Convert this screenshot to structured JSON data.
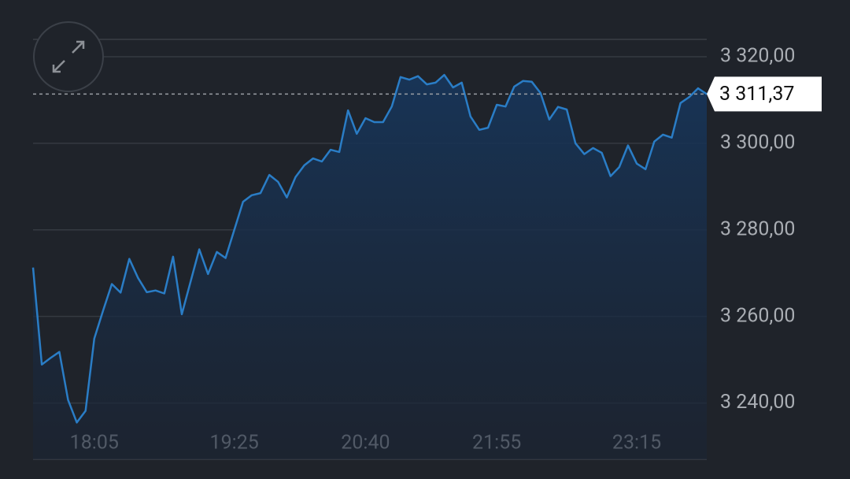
{
  "chart_data": {
    "type": "area",
    "categories": [
      null,
      null,
      null,
      null,
      null,
      null,
      null,
      "18:05",
      null,
      null,
      null,
      null,
      null,
      null,
      null,
      null,
      null,
      null,
      null,
      null,
      null,
      null,
      null,
      "19:25",
      null,
      null,
      null,
      null,
      null,
      null,
      null,
      null,
      null,
      null,
      null,
      null,
      null,
      null,
      "20:40",
      null,
      null,
      null,
      null,
      null,
      null,
      null,
      null,
      null,
      null,
      null,
      null,
      null,
      null,
      "21:55",
      null,
      null,
      null,
      null,
      null,
      null,
      null,
      null,
      null,
      null,
      null,
      null,
      null,
      null,
      null,
      "23:15",
      null,
      null,
      null,
      null,
      null,
      null,
      null,
      null
    ],
    "values": [
      3271.3,
      3248.9,
      3250.4,
      3251.8,
      3240.7,
      3235.5,
      3238.2,
      3254.9,
      3261.3,
      3267.5,
      3265.5,
      3273.3,
      3268.9,
      3265.6,
      3266.0,
      3265.3,
      3273.8,
      3260.5,
      3268.0,
      3275.5,
      3269.8,
      3274.9,
      3273.5,
      3280.0,
      3286.5,
      3288.0,
      3288.5,
      3292.7,
      3291.1,
      3287.5,
      3292.2,
      3294.9,
      3296.5,
      3295.8,
      3298.5,
      3298.0,
      3307.6,
      3302.2,
      3305.8,
      3304.9,
      3304.9,
      3308.5,
      3315.3,
      3314.7,
      3315.5,
      3313.6,
      3314.0,
      3315.8,
      3312.9,
      3314.0,
      3306.2,
      3303.1,
      3303.6,
      3308.9,
      3308.5,
      3313.1,
      3314.4,
      3314.2,
      3311.6,
      3305.5,
      3308.4,
      3307.8,
      3300.0,
      3297.5,
      3298.9,
      3297.8,
      3292.4,
      3294.5,
      3299.5,
      3295.3,
      3294.0,
      3300.4,
      3302.0,
      3301.3,
      3309.3,
      3310.7,
      3312.7,
      3311.37
    ],
    "color": "#2a7dc6",
    "ylim": [
      3227,
      3324
    ],
    "yticks": [
      {
        "value": 3240,
        "label": "3 240,00"
      },
      {
        "value": 3260,
        "label": "3 260,00"
      },
      {
        "value": 3280,
        "label": "3 280,00"
      },
      {
        "value": 3300,
        "label": "3 300,00"
      },
      {
        "value": 3320,
        "label": "3 320,00"
      }
    ],
    "grid": true,
    "current_price": {
      "value": 3311.37,
      "label": "3 311,37"
    }
  }
}
